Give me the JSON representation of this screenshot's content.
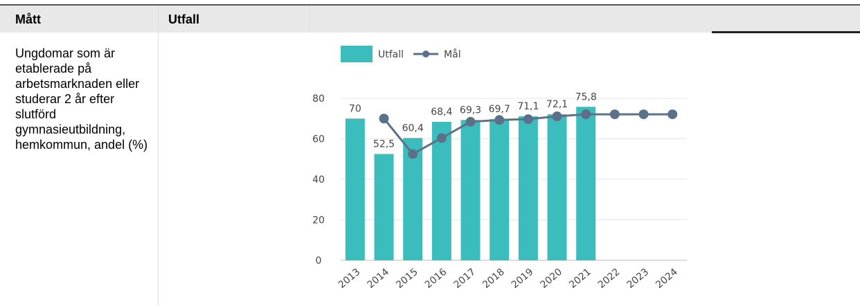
{
  "table": {
    "headers": [
      "Mått",
      "Utfall"
    ],
    "rows": [
      [
        "Ungdomar som är etablerade på arbetsmarknaden eller studerar 2 år efter slutförd gymnasieutbildning, hemkommun, andel (%)"
      ]
    ]
  },
  "chart_data": {
    "type": "bar",
    "categories": [
      "2013",
      "2014",
      "2015",
      "2016",
      "2017",
      "2018",
      "2019",
      "2020",
      "2021",
      "2022",
      "2023",
      "2024"
    ],
    "series": [
      {
        "name": "Utfall",
        "type": "bar",
        "color": "#3bbdbd",
        "values": [
          70,
          52.5,
          60.4,
          68.4,
          69.3,
          69.7,
          71.1,
          72.1,
          75.8,
          null,
          null,
          null
        ],
        "value_labels": [
          "70",
          "52,5",
          "60,4",
          "68,4",
          "69,3",
          "69,7",
          "71,1",
          "72,1",
          "75,8",
          null,
          null,
          null
        ]
      },
      {
        "name": "Mål",
        "type": "line",
        "color": "#5b7189",
        "values": [
          null,
          70,
          52.5,
          60.4,
          68.4,
          69.3,
          69.7,
          71.1,
          72.1,
          72.1,
          72.1,
          72.1
        ]
      }
    ],
    "ylim": [
      0,
      80
    ],
    "yticks": [
      0,
      20,
      40,
      60,
      80
    ],
    "grid": true,
    "legend": "top"
  }
}
